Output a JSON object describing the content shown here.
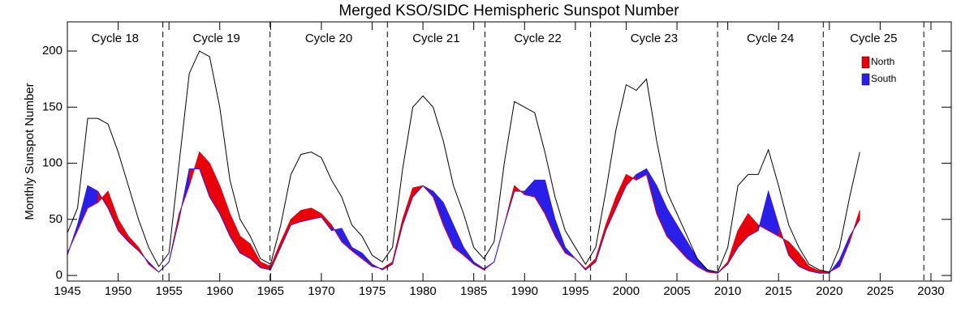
{
  "chart_data": {
    "type": "hemispheric_band",
    "title": "Merged KSO/SIDC Hemispheric Sunspot Number",
    "ylabel": "Monthly Sunspot Number",
    "xlim": [
      1945,
      2032
    ],
    "ylim": [
      -5,
      226
    ],
    "xticks": [
      1945,
      1950,
      1955,
      1960,
      1965,
      1970,
      1975,
      1980,
      1985,
      1990,
      1995,
      2000,
      2005,
      2010,
      2015,
      2020,
      2025,
      2030
    ],
    "yticks": [
      0,
      50,
      100,
      150,
      200
    ],
    "x": [
      1945,
      1946,
      1947,
      1948,
      1949,
      1950,
      1951,
      1952,
      1953,
      1954,
      1955,
      1956,
      1957,
      1958,
      1959,
      1960,
      1961,
      1962,
      1963,
      1964,
      1965,
      1966,
      1967,
      1968,
      1969,
      1970,
      1971,
      1972,
      1973,
      1974,
      1975,
      1976,
      1977,
      1978,
      1979,
      1980,
      1981,
      1982,
      1983,
      1984,
      1985,
      1986,
      1987,
      1988,
      1989,
      1990,
      1991,
      1992,
      1993,
      1994,
      1995,
      1996,
      1997,
      1998,
      1999,
      2000,
      2001,
      2002,
      2003,
      2004,
      2005,
      2006,
      2007,
      2008,
      2009,
      2010,
      2011,
      2012,
      2013,
      2014,
      2015,
      2016,
      2017,
      2018,
      2019,
      2020,
      2021,
      2022,
      2023
    ],
    "total": {
      "color": "#000000",
      "values": [
        38,
        60,
        140,
        140,
        135,
        110,
        80,
        50,
        25,
        8,
        20,
        100,
        180,
        200,
        195,
        150,
        85,
        50,
        35,
        15,
        10,
        45,
        90,
        108,
        110,
        105,
        85,
        70,
        45,
        35,
        18,
        12,
        25,
        95,
        150,
        160,
        150,
        120,
        80,
        55,
        25,
        15,
        30,
        100,
        155,
        150,
        145,
        110,
        70,
        40,
        25,
        10,
        25,
        75,
        130,
        170,
        165,
        175,
        120,
        75,
        55,
        35,
        15,
        5,
        3,
        25,
        80,
        90,
        90,
        112,
        80,
        45,
        25,
        10,
        5,
        3,
        25,
        70,
        110
      ]
    },
    "series": [
      {
        "name": "North",
        "color": "#e8000b",
        "values": [
          20,
          40,
          60,
          65,
          75,
          50,
          35,
          25,
          10,
          3,
          12,
          55,
          80,
          110,
          100,
          80,
          55,
          35,
          28,
          12,
          8,
          30,
          50,
          58,
          60,
          55,
          45,
          30,
          22,
          15,
          8,
          6,
          12,
          50,
          78,
          80,
          70,
          45,
          25,
          18,
          10,
          5,
          12,
          45,
          80,
          72,
          70,
          55,
          35,
          20,
          15,
          6,
          15,
          45,
          70,
          90,
          85,
          90,
          55,
          35,
          25,
          15,
          8,
          3,
          2,
          12,
          40,
          55,
          45,
          40,
          35,
          30,
          20,
          8,
          4,
          3,
          8,
          30,
          58
        ]
      },
      {
        "name": "South",
        "color": "#2a1fe8",
        "values": [
          18,
          45,
          80,
          75,
          60,
          40,
          30,
          22,
          12,
          3,
          12,
          50,
          95,
          95,
          70,
          55,
          35,
          20,
          15,
          7,
          5,
          25,
          45,
          48,
          50,
          52,
          40,
          42,
          25,
          20,
          10,
          5,
          10,
          45,
          70,
          80,
          75,
          65,
          45,
          25,
          12,
          6,
          12,
          45,
          75,
          75,
          85,
          85,
          50,
          25,
          15,
          5,
          12,
          40,
          60,
          80,
          90,
          95,
          80,
          60,
          45,
          30,
          15,
          5,
          2,
          10,
          25,
          35,
          40,
          75,
          45,
          18,
          8,
          4,
          2,
          2,
          14,
          35,
          50
        ]
      }
    ],
    "cycle_boundaries": [
      1954.4,
      1964.95,
      1976.5,
      1986.1,
      1996.5,
      2009.0,
      2019.4,
      2029.3
    ],
    "cycle_labels": [
      "Cycle 18",
      "Cycle 19",
      "Cycle 20",
      "Cycle 21",
      "Cycle 22",
      "Cycle 23",
      "Cycle 24",
      "Cycle 25"
    ]
  }
}
